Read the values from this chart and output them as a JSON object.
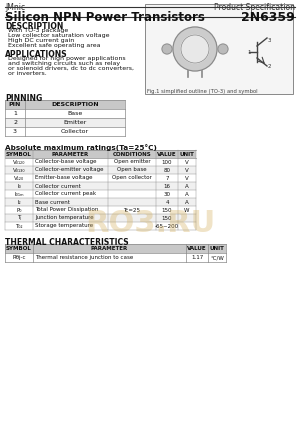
{
  "brand": "JMnic",
  "spec_type": "Product Specification",
  "title": "Silicon NPN Power Transistors",
  "part_number": "2N6359",
  "description_title": "DESCRIPTION",
  "description_items": [
    "With TO-3 package",
    "Low collector saturation voltage",
    "High DC current gain",
    "Excellent safe operating area"
  ],
  "applications_title": "APPLICATIONS",
  "applications_text": "Designed for high power applications\nand switching circuits such as relay\nor solenoid drivers, dc to dc converters,\nor inverters.",
  "pinning_title": "PINNING",
  "pin_headers": [
    "PIN",
    "DESCRIPTION"
  ],
  "pin_rows": [
    [
      "1",
      "Base"
    ],
    [
      "2",
      "Emitter"
    ],
    [
      "3",
      "Collector"
    ]
  ],
  "fig_caption": "Fig.1 simplified outline (TO-3) and symbol",
  "abs_max_title": "Absolute maximum ratings(Ta=25°C)",
  "abs_headers": [
    "SYMBOL",
    "PARAMETER",
    "CONDITIONS",
    "VALUE",
    "UNIT"
  ],
  "abs_rows": [
    [
      "V\\u2080\\u2091\\u2092\\u2080",
      "Collector-base voltage",
      "Open emitter",
      "100",
      "V"
    ],
    [
      "V\\u2080\\u2091\\u2091\\u2080",
      "Collector-emitter voltage",
      "Open base",
      "80",
      "V"
    ],
    [
      "V\\u2091\\u2092\\u2080",
      "Emitter-base voltage",
      "Open collector",
      "7",
      "V"
    ],
    [
      "I\\u2080",
      "Collector current",
      "",
      "16",
      "A"
    ],
    [
      "I\\u2080\\u2091\\u2098",
      "Collector current peak",
      "",
      "30",
      "A"
    ],
    [
      "I\\u2092",
      "Base current",
      "",
      "4",
      "A"
    ],
    [
      "P\\u2080",
      "Total Power Dissipation",
      "Tc=25",
      "150",
      "W"
    ],
    [
      "T\\u2c7c",
      "Junction temperature",
      "",
      "150",
      ""
    ],
    [
      "T\\u2080\\u2091\\u2092",
      "Storage temperature",
      "",
      "-65~200",
      ""
    ]
  ],
  "thermal_title": "THERMAL CHARACTERISTICS",
  "thermal_headers": [
    "SYMBOL",
    "PARAMETER",
    "VALUE",
    "UNIT"
  ],
  "thermal_rows": [
    [
      "R\\u03b8j-c",
      "Thermal resistance junction to case",
      "1.17",
      "°C/W"
    ]
  ],
  "bg_color": "#ffffff",
  "header_row_bg": "#d0d0d0",
  "table_line_color": "#888888",
  "text_color": "#222222",
  "watermark_color": "#e0c080"
}
